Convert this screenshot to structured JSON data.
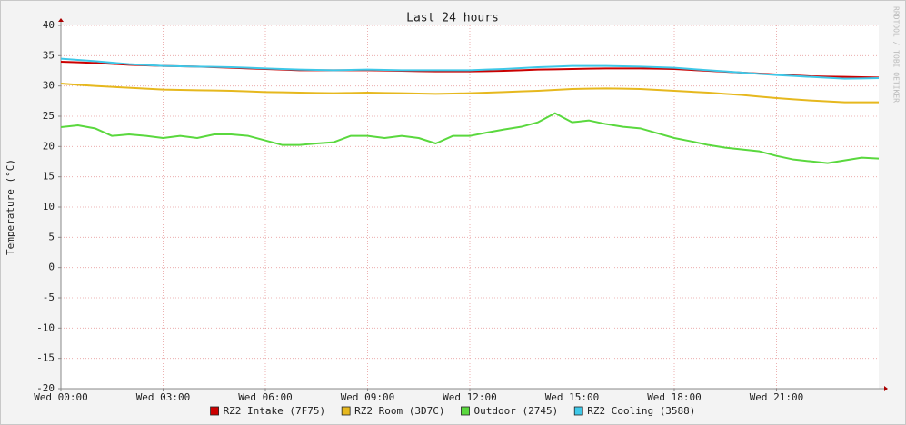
{
  "chart_data": {
    "type": "line",
    "title": "Last 24 hours",
    "y_label": "Temperature (°C)",
    "watermark": "RRDTOOL / TOBI OETIKER",
    "x": [
      0,
      0.5,
      1,
      1.5,
      2,
      2.5,
      3,
      3.5,
      4,
      4.5,
      5,
      5.5,
      6,
      6.5,
      7,
      7.5,
      8,
      8.5,
      9,
      9.5,
      10,
      10.5,
      11,
      11.5,
      12,
      12.5,
      13,
      13.5,
      14,
      14.5,
      15,
      15.5,
      16,
      16.5,
      17,
      17.5,
      18,
      18.5,
      19,
      19.5,
      20,
      20.5,
      21,
      21.5,
      22,
      22.5,
      23,
      23.5,
      24
    ],
    "xlim": [
      0,
      24
    ],
    "xticks": [
      {
        "value": 0,
        "label": "Wed 00:00"
      },
      {
        "value": 3,
        "label": "Wed 03:00"
      },
      {
        "value": 6,
        "label": "Wed 06:00"
      },
      {
        "value": 9,
        "label": "Wed 09:00"
      },
      {
        "value": 12,
        "label": "Wed 12:00"
      },
      {
        "value": 15,
        "label": "Wed 15:00"
      },
      {
        "value": 18,
        "label": "Wed 18:00"
      },
      {
        "value": 21,
        "label": "Wed 21:00"
      }
    ],
    "ylim": [
      -20,
      40
    ],
    "yticks": [
      -20,
      -15,
      -10,
      -5,
      0,
      5,
      10,
      15,
      20,
      25,
      30,
      35,
      40
    ],
    "grid": true,
    "legend": "bottom",
    "series": [
      {
        "name": "RZ2 Intake (7F75)",
        "color": "#cc0000",
        "values": [
          34,
          33.9,
          33.8,
          33.65,
          33.5,
          33.4,
          33.3,
          33.25,
          33.2,
          33.1,
          33.0,
          32.9,
          32.8,
          32.7,
          32.6,
          32.6,
          32.6,
          32.6,
          32.6,
          32.55,
          32.5,
          32.45,
          32.4,
          32.4,
          32.4,
          32.45,
          32.5,
          32.6,
          32.7,
          32.75,
          32.8,
          32.85,
          32.9,
          32.9,
          32.9,
          32.85,
          32.8,
          32.65,
          32.5,
          32.35,
          32.2,
          32.05,
          31.9,
          31.75,
          31.6,
          31.55,
          31.5,
          31.45,
          31.4
        ]
      },
      {
        "name": "RZ2 Room (3D7C)",
        "color": "#e6b81e",
        "values": [
          30.4,
          30.2,
          30.0,
          29.85,
          29.7,
          29.55,
          29.4,
          29.35,
          29.3,
          29.25,
          29.2,
          29.1,
          29.0,
          28.95,
          28.9,
          28.85,
          28.8,
          28.85,
          28.9,
          28.85,
          28.8,
          28.75,
          28.7,
          28.75,
          28.8,
          28.9,
          29.0,
          29.1,
          29.2,
          29.35,
          29.5,
          29.55,
          29.6,
          29.55,
          29.5,
          29.35,
          29.2,
          29.05,
          28.9,
          28.7,
          28.5,
          28.25,
          28.0,
          27.8,
          27.6,
          27.45,
          27.3,
          27.3,
          27.3
        ]
      },
      {
        "name": "Outdoor (2745)",
        "color": "#5ad83e",
        "values": [
          23.2,
          23.5,
          23,
          21.75,
          22,
          21.75,
          21.4,
          21.75,
          21.4,
          22,
          22,
          21.75,
          21,
          20.25,
          20.25,
          20.5,
          20.7,
          21.75,
          21.75,
          21.4,
          21.75,
          21.4,
          20.5,
          21.75,
          21.75,
          22.3,
          22.8,
          23.25,
          24,
          25.5,
          24,
          24.3,
          23.7,
          23.25,
          23,
          22.2,
          21.4,
          20.85,
          20.25,
          19.8,
          19.5,
          19.2,
          18.45,
          17.85,
          17.55,
          17.25,
          17.7,
          18.15,
          18
        ]
      },
      {
        "name": "RZ2 Cooling (3588)",
        "color": "#3ec8e8",
        "values": [
          34.5,
          34.3,
          34.1,
          33.85,
          33.6,
          33.45,
          33.3,
          33.25,
          33.2,
          33.15,
          33.1,
          33.0,
          32.9,
          32.8,
          32.7,
          32.65,
          32.6,
          32.65,
          32.7,
          32.65,
          32.6,
          32.6,
          32.6,
          32.6,
          32.6,
          32.7,
          32.8,
          32.95,
          33.1,
          33.2,
          33.3,
          33.3,
          33.3,
          33.25,
          33.2,
          33.1,
          33.0,
          32.8,
          32.6,
          32.4,
          32.2,
          32.0,
          31.8,
          31.65,
          31.5,
          31.35,
          31.2,
          31.25,
          31.3
        ]
      }
    ]
  }
}
